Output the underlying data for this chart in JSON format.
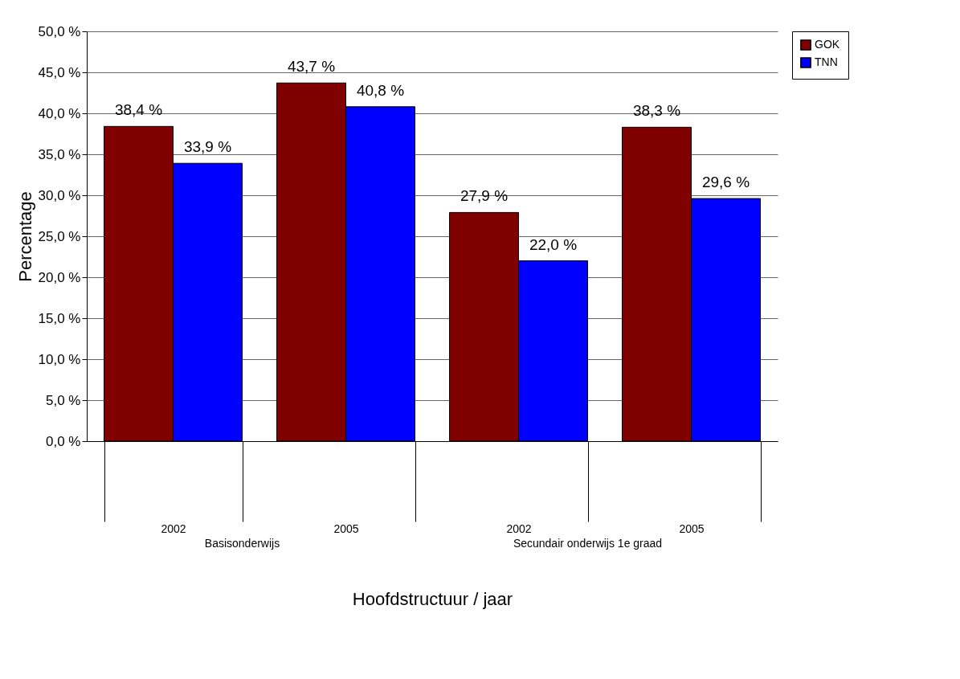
{
  "chart_data": {
    "type": "bar",
    "xlabel": "Hoofdstructuur / jaar",
    "ylabel": "Percentage",
    "categories": [
      "2002",
      "2005",
      "2002",
      "2005"
    ],
    "annotations": [
      "Basisonderwijs",
      "Secundair onderwijs 1e graad"
    ],
    "series": [
      {
        "name": "GOK",
        "color": "#800000",
        "values": [
          38.4,
          43.7,
          27.9,
          38.3
        ],
        "value_labels": [
          "38,4 %",
          "43,7 %",
          "27,9 %",
          "38,3 %"
        ]
      },
      {
        "name": "TNN",
        "color": "#0000ff",
        "values": [
          33.9,
          40.8,
          22.0,
          29.6
        ],
        "value_labels": [
          "33,9 %",
          "40,8 %",
          "22,0 %",
          "29,6 %"
        ]
      }
    ],
    "ylim": [
      0,
      50
    ],
    "yticks": [
      {
        "value": 0,
        "label": "0,0 %"
      },
      {
        "value": 5,
        "label": "5,0 %"
      },
      {
        "value": 10,
        "label": "10,0 %"
      },
      {
        "value": 15,
        "label": "15,0 %"
      },
      {
        "value": 20,
        "label": "20,0 %"
      },
      {
        "value": 25,
        "label": "25,0 %"
      },
      {
        "value": 30,
        "label": "30,0 %"
      },
      {
        "value": 35,
        "label": "35,0 %"
      },
      {
        "value": 40,
        "label": "40,0 %"
      },
      {
        "value": 45,
        "label": "45,0 %"
      },
      {
        "value": 50,
        "label": "50,0 %"
      }
    ],
    "grid": "y",
    "legend": "right"
  }
}
